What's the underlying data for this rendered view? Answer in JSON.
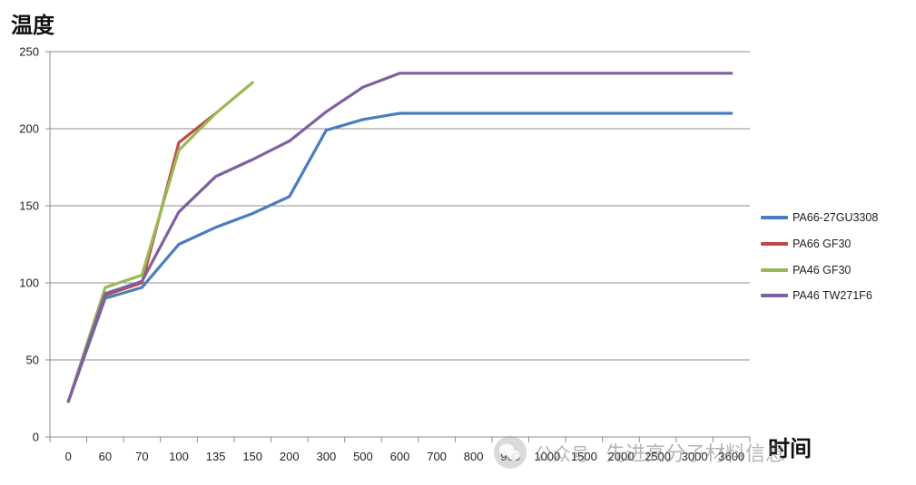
{
  "chart_data": {
    "type": "line",
    "ylabel": "温度",
    "xlabel": "时间",
    "categories": [
      "0",
      "60",
      "70",
      "100",
      "135",
      "150",
      "200",
      "300",
      "500",
      "600",
      "700",
      "800",
      "900",
      "1000",
      "1500",
      "2000",
      "2500",
      "3000",
      "3600"
    ],
    "ylim": [
      0,
      250
    ],
    "yticks": [
      0,
      50,
      100,
      150,
      200,
      250
    ],
    "grid": true,
    "legend_position": "right",
    "series": [
      {
        "name": "PA66-27GU3308",
        "color": "#4a7ebb",
        "values": [
          23,
          90,
          97,
          125,
          136,
          145,
          156,
          199,
          206,
          210,
          210,
          210,
          210,
          210,
          210,
          210,
          210,
          210,
          210
        ]
      },
      {
        "name": "PA66 GF30",
        "color": "#be4b48",
        "values": [
          23,
          92,
          100,
          191,
          210,
          null,
          null,
          null,
          null,
          null,
          null,
          null,
          null,
          null,
          null,
          null,
          null,
          null,
          null
        ]
      },
      {
        "name": "PA46 GF30",
        "color": "#98b954",
        "values": [
          23,
          97,
          105,
          186,
          210,
          230,
          null,
          null,
          null,
          null,
          null,
          null,
          null,
          null,
          null,
          null,
          null,
          null,
          null
        ]
      },
      {
        "name": "PA46 TW271F6",
        "color": "#7d60a0",
        "values": [
          23,
          93,
          101,
          146,
          169,
          180,
          192,
          211,
          227,
          236,
          236,
          236,
          236,
          236,
          236,
          236,
          236,
          236,
          236
        ]
      }
    ]
  },
  "watermark": {
    "source": "公众号",
    "text": "先进高分子材料信息",
    "icon": "wechat-icon"
  }
}
